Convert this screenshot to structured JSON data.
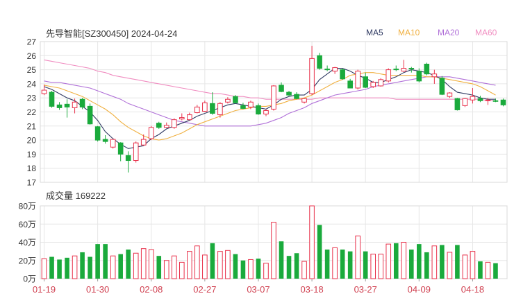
{
  "chart_data": {
    "type": "candlestick",
    "title": "先导智能[SZ300450] 2024-04-24",
    "colors": {
      "up": "#e8304a",
      "down": "#1aaa3c",
      "ma5": "#2f3a62",
      "ma10": "#f0b040",
      "ma20": "#b070d8",
      "ma60": "#f08cc0",
      "grid": "#e6e6e6",
      "axis": "#333333",
      "date": "#d04050"
    },
    "legend": [
      {
        "key": "ma5",
        "label": "MA5",
        "color": "#2f3a62"
      },
      {
        "key": "ma10",
        "label": "MA10",
        "color": "#f0b040"
      },
      {
        "key": "ma20",
        "label": "MA20",
        "color": "#b070d8"
      },
      {
        "key": "ma60",
        "label": "MA60",
        "color": "#f08cc0"
      }
    ],
    "price_axis": {
      "ylim": [
        17,
        27
      ],
      "ticks": [
        "27",
        "26",
        "25",
        "24",
        "23",
        "22",
        "21",
        "20",
        "19",
        "18",
        "17"
      ]
    },
    "volume_title": "成交量 169222",
    "volume_axis": {
      "ylim": [
        0,
        80
      ],
      "ticks": [
        "80万",
        "60万",
        "40万",
        "20万",
        "0万"
      ]
    },
    "x_ticks": [
      {
        "index": 0,
        "label": "01-19"
      },
      {
        "index": 7,
        "label": "01-30"
      },
      {
        "index": 14,
        "label": "02-08"
      },
      {
        "index": 21,
        "label": "02-27"
      },
      {
        "index": 28,
        "label": "03-07"
      },
      {
        "index": 35,
        "label": "03-18"
      },
      {
        "index": 42,
        "label": "03-27"
      },
      {
        "index": 49,
        "label": "04-09"
      },
      {
        "index": 56,
        "label": "04-18"
      }
    ],
    "candles": [
      [
        23.3,
        23.95,
        23.2,
        23.55
      ],
      [
        23.4,
        23.5,
        22.3,
        22.4
      ],
      [
        22.5,
        22.7,
        22.15,
        22.3
      ],
      [
        22.55,
        22.9,
        21.6,
        22.35
      ],
      [
        22.3,
        22.95,
        21.9,
        22.7
      ],
      [
        22.9,
        23.0,
        22.2,
        22.35
      ],
      [
        22.4,
        22.6,
        21.1,
        21.15
      ],
      [
        20.95,
        21.0,
        19.9,
        20.0
      ],
      [
        20.05,
        20.35,
        19.75,
        19.9
      ],
      [
        19.5,
        20.05,
        19.4,
        20.05
      ],
      [
        19.8,
        19.85,
        18.5,
        19.0
      ],
      [
        18.9,
        19.2,
        17.7,
        18.55
      ],
      [
        18.55,
        19.9,
        18.4,
        19.8
      ],
      [
        19.65,
        20.4,
        19.6,
        20.05
      ],
      [
        20.1,
        21.0,
        20.0,
        20.9
      ],
      [
        21.2,
        21.3,
        20.8,
        20.9
      ],
      [
        20.9,
        21.25,
        20.85,
        21.05
      ],
      [
        20.9,
        21.55,
        20.8,
        21.45
      ],
      [
        21.5,
        21.9,
        21.4,
        21.6
      ],
      [
        21.45,
        21.95,
        21.4,
        21.8
      ],
      [
        21.95,
        22.5,
        21.9,
        22.35
      ],
      [
        22.05,
        22.8,
        22.0,
        22.65
      ],
      [
        22.6,
        23.4,
        21.8,
        21.9
      ],
      [
        21.8,
        22.7,
        21.6,
        22.6
      ],
      [
        22.7,
        23.05,
        22.6,
        22.9
      ],
      [
        23.1,
        23.2,
        22.6,
        22.65
      ],
      [
        22.45,
        22.65,
        22.2,
        22.25
      ],
      [
        22.35,
        22.8,
        22.2,
        22.7
      ],
      [
        22.45,
        22.6,
        21.8,
        21.85
      ],
      [
        21.85,
        22.2,
        21.7,
        22.1
      ],
      [
        22.2,
        23.9,
        22.1,
        23.85
      ],
      [
        23.9,
        24.1,
        23.4,
        23.45
      ],
      [
        23.4,
        23.5,
        23.15,
        23.2
      ],
      [
        23.25,
        23.4,
        22.9,
        22.95
      ],
      [
        22.7,
        23.0,
        22.6,
        22.95
      ],
      [
        23.3,
        26.7,
        23.2,
        25.8
      ],
      [
        26.0,
        26.2,
        25.0,
        25.1
      ],
      [
        25.05,
        25.3,
        24.9,
        25.0
      ],
      [
        24.9,
        25.2,
        24.7,
        25.15
      ],
      [
        25.0,
        25.1,
        24.3,
        24.35
      ],
      [
        24.2,
        24.35,
        23.7,
        23.7
      ],
      [
        23.7,
        25.0,
        23.6,
        24.9
      ],
      [
        24.5,
        24.8,
        23.7,
        23.75
      ],
      [
        23.8,
        24.2,
        23.7,
        24.1
      ],
      [
        23.85,
        24.4,
        23.8,
        24.3
      ],
      [
        24.2,
        25.1,
        24.1,
        25.0
      ],
      [
        25.05,
        25.3,
        24.9,
        25.0
      ],
      [
        24.9,
        25.7,
        24.85,
        25.1
      ],
      [
        25.1,
        25.2,
        24.8,
        25.05
      ],
      [
        24.9,
        25.1,
        24.1,
        24.2
      ],
      [
        25.4,
        25.5,
        24.6,
        24.7
      ],
      [
        24.5,
        25.0,
        24.0,
        24.7
      ],
      [
        24.4,
        24.55,
        23.2,
        23.25
      ],
      [
        23.1,
        23.4,
        23.0,
        23.35
      ],
      [
        22.95,
        23.0,
        22.1,
        22.15
      ],
      [
        22.45,
        23.0,
        22.35,
        22.95
      ],
      [
        22.85,
        23.7,
        22.6,
        23.1
      ],
      [
        22.95,
        23.15,
        22.7,
        22.8
      ],
      [
        22.8,
        23.0,
        22.5,
        22.85
      ],
      [
        22.8,
        22.95,
        22.7,
        22.75
      ],
      [
        22.85,
        22.95,
        22.4,
        22.5
      ]
    ],
    "volumes": [
      22,
      24,
      21,
      23,
      25,
      29,
      24,
      38,
      38,
      25,
      27,
      32,
      28,
      33,
      32,
      25,
      20,
      25,
      18,
      30,
      36,
      26,
      39,
      30,
      31,
      27,
      20,
      21,
      22,
      17,
      62,
      41,
      25,
      28,
      19,
      80,
      59,
      32,
      34,
      32,
      30,
      47,
      30,
      27,
      27,
      38,
      39,
      40,
      32,
      38,
      29,
      36,
      37,
      29,
      37,
      26,
      30,
      19,
      18,
      17
    ],
    "ma5": [
      23.8,
      23.6,
      23.3,
      23.0,
      22.8,
      22.4,
      22.0,
      21.4,
      20.6,
      20.1,
      19.7,
      19.4,
      19.5,
      19.6,
      20.1,
      20.4,
      20.8,
      21.0,
      21.2,
      21.4,
      21.7,
      21.9,
      22.1,
      22.3,
      22.5,
      22.6,
      22.5,
      22.4,
      22.3,
      22.2,
      22.5,
      22.9,
      23.1,
      23.2,
      23.2,
      23.6,
      24.3,
      24.7,
      25.1,
      25.1,
      24.9,
      24.6,
      24.4,
      24.1,
      24.1,
      24.3,
      24.5,
      24.8,
      25.0,
      24.9,
      24.8,
      24.6,
      24.3,
      23.8,
      23.4,
      23.3,
      23.2,
      23.0,
      22.9,
      22.9
    ],
    "ma10": [
      23.9,
      23.8,
      23.7,
      23.5,
      23.3,
      23.1,
      22.8,
      22.5,
      22.2,
      21.8,
      21.3,
      20.9,
      20.6,
      20.3,
      20.1,
      20.0,
      20.1,
      20.3,
      20.5,
      20.8,
      21.1,
      21.3,
      21.5,
      21.7,
      21.9,
      22.1,
      22.2,
      22.3,
      22.4,
      22.4,
      22.5,
      22.6,
      22.8,
      22.9,
      23.0,
      23.2,
      23.5,
      23.8,
      24.1,
      24.3,
      24.6,
      24.7,
      24.8,
      24.8,
      24.7,
      24.6,
      24.6,
      24.6,
      24.6,
      24.6,
      24.5,
      24.5,
      24.4,
      24.3,
      24.2,
      24.1,
      24.0,
      23.8,
      23.5,
      23.2
    ],
    "ma20": [
      24.2,
      24.1,
      24.1,
      24.0,
      23.9,
      23.8,
      23.7,
      23.5,
      23.3,
      23.1,
      22.9,
      22.6,
      22.4,
      22.2,
      22.0,
      21.8,
      21.6,
      21.4,
      21.3,
      21.2,
      21.1,
      21.0,
      21.0,
      21.0,
      21.0,
      21.0,
      21.0,
      21.0,
      21.1,
      21.2,
      21.4,
      21.6,
      21.9,
      22.1,
      22.3,
      22.6,
      22.8,
      23.0,
      23.2,
      23.3,
      23.4,
      23.5,
      23.6,
      23.8,
      23.9,
      24.0,
      24.1,
      24.2,
      24.3,
      24.4,
      24.5,
      24.5,
      24.5,
      24.5,
      24.4,
      24.3,
      24.2,
      24.1,
      24.0,
      23.9
    ],
    "ma60": [
      25.7,
      25.6,
      25.5,
      25.4,
      25.3,
      25.2,
      25.1,
      24.9,
      24.8,
      24.6,
      24.5,
      24.4,
      24.3,
      24.2,
      24.1,
      24.0,
      23.9,
      23.8,
      23.7,
      23.6,
      23.5,
      23.4,
      23.3,
      23.3,
      23.2,
      23.1,
      23.1,
      23.0,
      23.0,
      22.9,
      22.9,
      22.9,
      22.9,
      22.9,
      22.9,
      22.9,
      23.0,
      23.0,
      23.0,
      23.0,
      23.0,
      23.0,
      23.0,
      23.0,
      23.0,
      23.0,
      22.9,
      22.9,
      22.9,
      22.9,
      22.9,
      22.9,
      22.9,
      22.9,
      22.9,
      22.9,
      22.9,
      22.9,
      22.8,
      22.8
    ]
  }
}
